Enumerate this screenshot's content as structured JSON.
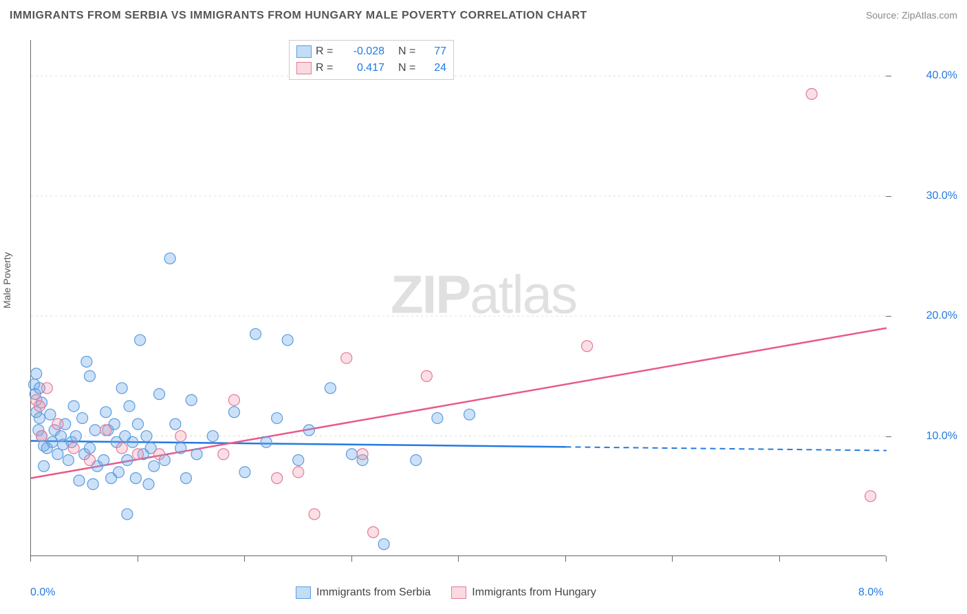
{
  "title": "IMMIGRANTS FROM SERBIA VS IMMIGRANTS FROM HUNGARY MALE POVERTY CORRELATION CHART",
  "source": "Source: ZipAtlas.com",
  "y_axis_label": "Male Poverty",
  "watermark": {
    "bold": "ZIP",
    "light": "atlas"
  },
  "chart": {
    "type": "scatter",
    "xlim": [
      0.0,
      8.0
    ],
    "ylim": [
      0.0,
      43.0
    ],
    "x_ticks": [
      0.0,
      1.0,
      2.0,
      3.0,
      4.0,
      5.0,
      6.0,
      7.0,
      8.0
    ],
    "x_tick_labels": [
      "0.0%",
      "",
      "",
      "",
      "",
      "",
      "",
      "",
      "8.0%"
    ],
    "y_ticks": [
      10.0,
      20.0,
      30.0,
      40.0
    ],
    "y_tick_labels": [
      "10.0%",
      "20.0%",
      "30.0%",
      "40.0%"
    ],
    "grid_color": "#dddddd",
    "background_color": "#ffffff",
    "marker_radius": 8,
    "series": [
      {
        "name": "Immigrants from Serbia",
        "color_fill": "rgba(108,170,232,0.35)",
        "color_stroke": "#5a9be0",
        "r_value": "-0.028",
        "n_value": "77",
        "trend": {
          "x0": 0.0,
          "y0": 9.6,
          "x1": 5.0,
          "y1": 9.1,
          "x1_ext": 8.0,
          "y1_ext": 8.8,
          "color": "#2379e2"
        },
        "points": [
          [
            0.03,
            14.3
          ],
          [
            0.04,
            13.5
          ],
          [
            0.05,
            12.0
          ],
          [
            0.05,
            15.2
          ],
          [
            0.08,
            14.0
          ],
          [
            0.07,
            10.5
          ],
          [
            0.1,
            12.8
          ],
          [
            0.12,
            9.2
          ],
          [
            0.15,
            9.0
          ],
          [
            0.1,
            10.0
          ],
          [
            0.08,
            11.5
          ],
          [
            0.12,
            7.5
          ],
          [
            0.18,
            11.8
          ],
          [
            0.2,
            9.5
          ],
          [
            0.22,
            10.5
          ],
          [
            0.25,
            8.5
          ],
          [
            0.28,
            10.0
          ],
          [
            0.3,
            9.3
          ],
          [
            0.32,
            11.0
          ],
          [
            0.35,
            8.0
          ],
          [
            0.38,
            9.5
          ],
          [
            0.4,
            12.5
          ],
          [
            0.42,
            10.0
          ],
          [
            0.45,
            6.3
          ],
          [
            0.48,
            11.5
          ],
          [
            0.5,
            8.5
          ],
          [
            0.52,
            16.2
          ],
          [
            0.55,
            9.0
          ],
          [
            0.58,
            6.0
          ],
          [
            0.6,
            10.5
          ],
          [
            0.62,
            7.5
          ],
          [
            0.55,
            15.0
          ],
          [
            0.68,
            8.0
          ],
          [
            0.7,
            12.0
          ],
          [
            0.72,
            10.5
          ],
          [
            0.75,
            6.5
          ],
          [
            0.78,
            11.0
          ],
          [
            0.8,
            9.5
          ],
          [
            0.82,
            7.0
          ],
          [
            0.85,
            14.0
          ],
          [
            0.88,
            10.0
          ],
          [
            0.9,
            8.0
          ],
          [
            0.92,
            12.5
          ],
          [
            0.95,
            9.5
          ],
          [
            0.98,
            6.5
          ],
          [
            1.0,
            11.0
          ],
          [
            1.02,
            18.0
          ],
          [
            1.05,
            8.5
          ],
          [
            1.08,
            10.0
          ],
          [
            1.1,
            6.0
          ],
          [
            1.12,
            9.0
          ],
          [
            1.15,
            7.5
          ],
          [
            1.2,
            13.5
          ],
          [
            1.25,
            8.0
          ],
          [
            1.3,
            24.8
          ],
          [
            1.35,
            11.0
          ],
          [
            1.4,
            9.0
          ],
          [
            1.45,
            6.5
          ],
          [
            1.5,
            13.0
          ],
          [
            1.55,
            8.5
          ],
          [
            1.7,
            10.0
          ],
          [
            1.9,
            12.0
          ],
          [
            2.0,
            7.0
          ],
          [
            2.1,
            18.5
          ],
          [
            2.2,
            9.5
          ],
          [
            2.3,
            11.5
          ],
          [
            2.4,
            18.0
          ],
          [
            2.5,
            8.0
          ],
          [
            2.6,
            10.5
          ],
          [
            2.8,
            14.0
          ],
          [
            3.0,
            8.5
          ],
          [
            3.1,
            8.0
          ],
          [
            3.3,
            1.0
          ],
          [
            3.6,
            8.0
          ],
          [
            3.8,
            11.5
          ],
          [
            4.1,
            11.8
          ],
          [
            0.9,
            3.5
          ]
        ]
      },
      {
        "name": "Immigrants from Hungary",
        "color_fill": "rgba(240,150,170,0.3)",
        "color_stroke": "#e27a9a",
        "r_value": "0.417",
        "n_value": "24",
        "trend": {
          "x0": 0.0,
          "y0": 6.5,
          "x1": 8.0,
          "y1": 19.0,
          "color": "#e85a8a"
        },
        "points": [
          [
            0.05,
            13.0
          ],
          [
            0.08,
            12.5
          ],
          [
            0.1,
            10.0
          ],
          [
            0.15,
            14.0
          ],
          [
            0.25,
            11.0
          ],
          [
            0.4,
            9.0
          ],
          [
            0.55,
            8.0
          ],
          [
            0.7,
            10.5
          ],
          [
            0.85,
            9.0
          ],
          [
            1.0,
            8.5
          ],
          [
            1.2,
            8.5
          ],
          [
            1.4,
            10.0
          ],
          [
            1.8,
            8.5
          ],
          [
            1.9,
            13.0
          ],
          [
            2.3,
            6.5
          ],
          [
            2.5,
            7.0
          ],
          [
            2.65,
            3.5
          ],
          [
            2.95,
            16.5
          ],
          [
            3.1,
            8.5
          ],
          [
            3.2,
            2.0
          ],
          [
            3.7,
            15.0
          ],
          [
            5.2,
            17.5
          ],
          [
            7.3,
            38.5
          ],
          [
            7.85,
            5.0
          ]
        ]
      }
    ]
  },
  "legend_bottom": [
    {
      "color": "blue",
      "label": "Immigrants from Serbia"
    },
    {
      "color": "pink",
      "label": "Immigrants from Hungary"
    }
  ],
  "legend_stats": {
    "r_label": "R =",
    "n_label": "N ="
  }
}
